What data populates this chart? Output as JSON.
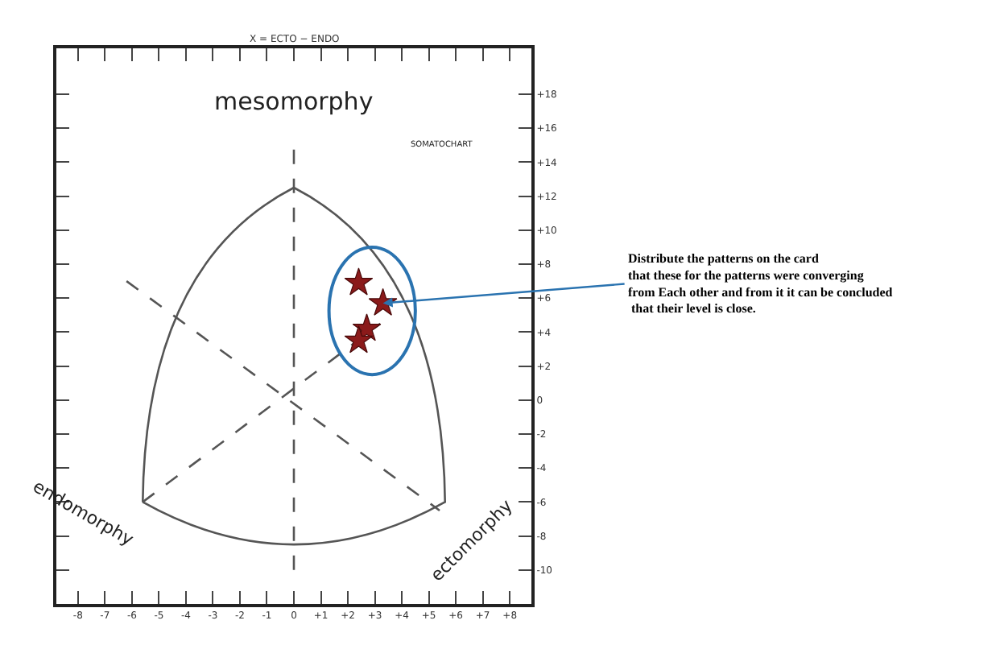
{
  "chart_data": {
    "type": "scatter",
    "xlabel": "X = ECTO − ENDO",
    "annotations": [
      "mesomorphy",
      "endomorphy",
      "ectomorphy",
      "SOMATOCHART",
      {
        "text": "Distribute the patterns on the card\nthat these for the patterns were converging\nfrom Each other and from it it can be concluded\n that their level is close.",
        "x": 3.3,
        "y": 5.7
      }
    ],
    "series": [
      {
        "color": "#8b1a1a",
        "x": [
          2.4,
          3.3,
          2.7,
          2.4
        ],
        "values": [
          6.9,
          5.7,
          4.2,
          3.5
        ]
      }
    ],
    "marker": "star",
    "xlim": [
      -8.8,
      8.8
    ],
    "xticks": [
      {
        "value": -8,
        "label": "-8"
      },
      {
        "value": -7,
        "label": "-7"
      },
      {
        "value": -6,
        "label": "-6"
      },
      {
        "value": -5,
        "label": "-5"
      },
      {
        "value": -4,
        "label": "-4"
      },
      {
        "value": -3,
        "label": "-3"
      },
      {
        "value": -2,
        "label": "-2"
      },
      {
        "value": -1,
        "label": "-1"
      },
      0,
      {
        "value": 1,
        "label": "+1"
      },
      {
        "value": 2,
        "label": "+2"
      },
      {
        "value": 3,
        "label": "+3"
      },
      {
        "value": 4,
        "label": "+4"
      },
      {
        "value": 5,
        "label": "+5"
      },
      {
        "value": 6,
        "label": "+6"
      },
      {
        "value": 7,
        "label": "+7"
      },
      {
        "value": 8,
        "label": "+8"
      }
    ],
    "ylim": [
      -12,
      20.7
    ],
    "yticks": [
      {
        "value": 18,
        "label": "+18"
      },
      {
        "value": 16,
        "label": "+16"
      },
      {
        "value": 14,
        "label": "+14"
      },
      {
        "value": 12,
        "label": "+12"
      },
      {
        "value": 10,
        "label": "+10"
      },
      {
        "value": 8,
        "label": "+8"
      },
      {
        "value": 6,
        "label": "+6"
      },
      {
        "value": 4,
        "label": "+4"
      },
      {
        "value": 2,
        "label": "+2"
      },
      0,
      -2,
      -4,
      -6,
      -8,
      -10
    ],
    "ref_lines": [
      {
        "axis": "x",
        "value": 0,
        "color": "#555555",
        "line_style": "dashed"
      }
    ],
    "grid": false
  }
}
